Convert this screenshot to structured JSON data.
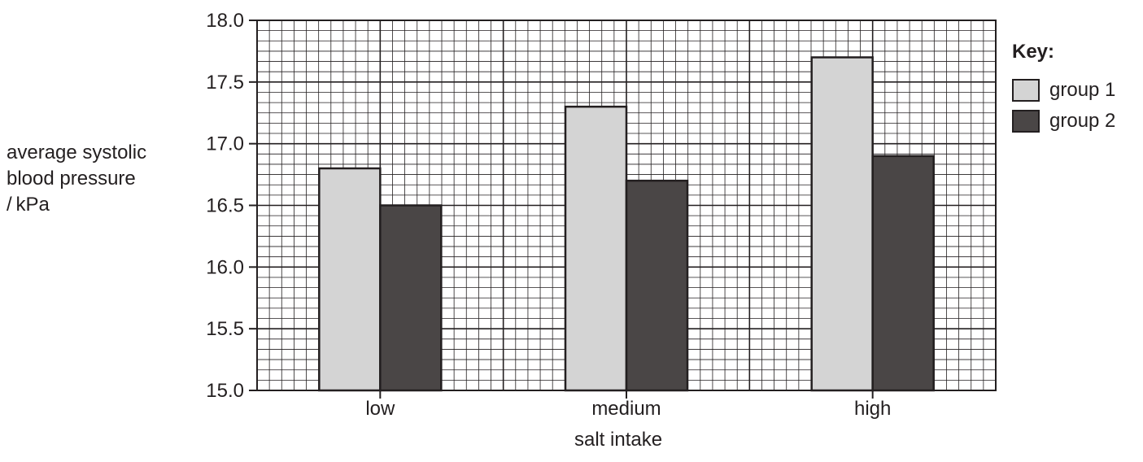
{
  "chart_data": {
    "type": "bar",
    "categories": [
      "low",
      "medium",
      "high"
    ],
    "series": [
      {
        "name": "group 1",
        "values": [
          16.8,
          17.3,
          17.7
        ],
        "color": "#d4d4d4"
      },
      {
        "name": "group 2",
        "values": [
          16.5,
          16.7,
          16.9
        ],
        "color": "#4a4646"
      }
    ],
    "title": "",
    "xlabel": "salt intake",
    "ylabel_lines": [
      "average systolic",
      "blood pressure",
      "/ kPa"
    ],
    "ylim": [
      15.0,
      18.0
    ],
    "yticks": [
      "15.0",
      "15.5",
      "16.0",
      "16.5",
      "17.0",
      "17.5",
      "18.0"
    ],
    "legend_title": "Key:",
    "legend_placement": "right",
    "grid": true,
    "grid_color": "#231f20"
  }
}
